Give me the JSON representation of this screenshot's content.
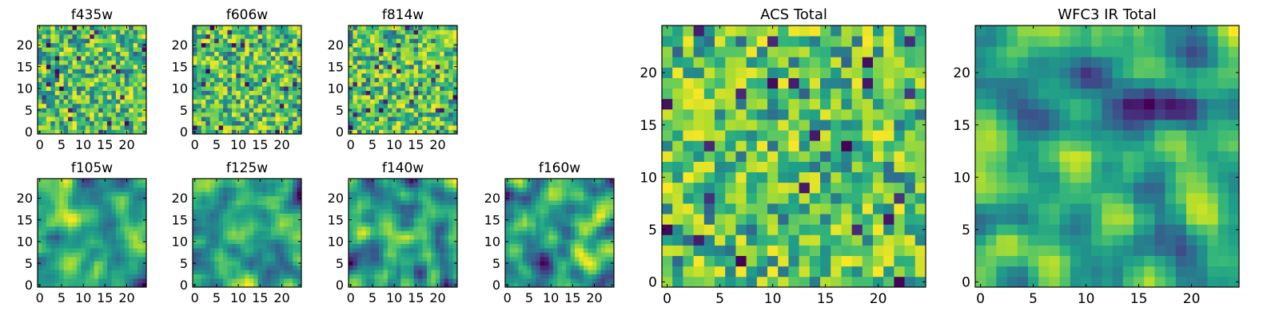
{
  "figure": {
    "panels": [
      {
        "title": "f435w"
      },
      {
        "title": "f606w"
      },
      {
        "title": "f814w"
      },
      {
        "title": "f105w"
      },
      {
        "title": "f125w"
      },
      {
        "title": "f140w"
      },
      {
        "title": "f160w"
      },
      {
        "title": "ACS Total"
      },
      {
        "title": "WFC3 IR Total"
      }
    ]
  },
  "chart_data": [
    {
      "type": "heatmap",
      "title": "f435w",
      "grid_size": [
        25,
        25
      ],
      "xlim": [
        -0.5,
        24.5
      ],
      "ylim": [
        -0.5,
        24.5
      ],
      "xticks": [
        0,
        5,
        10,
        15,
        20
      ],
      "yticks": [
        0,
        5,
        10,
        15,
        20
      ],
      "colormap": "viridis",
      "pattern": "noise",
      "seed": 11
    },
    {
      "type": "heatmap",
      "title": "f606w",
      "grid_size": [
        25,
        25
      ],
      "xlim": [
        -0.5,
        24.5
      ],
      "ylim": [
        -0.5,
        24.5
      ],
      "xticks": [
        0,
        5,
        10,
        15,
        20
      ],
      "yticks": [
        0,
        5,
        10,
        15,
        20
      ],
      "colormap": "viridis",
      "pattern": "noise",
      "seed": 23
    },
    {
      "type": "heatmap",
      "title": "f814w",
      "grid_size": [
        25,
        25
      ],
      "xlim": [
        -0.5,
        24.5
      ],
      "ylim": [
        -0.5,
        24.5
      ],
      "xticks": [
        0,
        5,
        10,
        15,
        20
      ],
      "yticks": [
        0,
        5,
        10,
        15,
        20
      ],
      "colormap": "viridis",
      "pattern": "noise",
      "seed": 37
    },
    {
      "type": "heatmap",
      "title": "f105w",
      "grid_size": [
        25,
        25
      ],
      "xlim": [
        -0.5,
        24.5
      ],
      "ylim": [
        -0.5,
        24.5
      ],
      "xticks": [
        0,
        5,
        10,
        15,
        20
      ],
      "yticks": [
        0,
        5,
        10,
        15,
        20
      ],
      "colormap": "viridis",
      "pattern": "smooth",
      "seed": 41
    },
    {
      "type": "heatmap",
      "title": "f125w",
      "grid_size": [
        25,
        25
      ],
      "xlim": [
        -0.5,
        24.5
      ],
      "ylim": [
        -0.5,
        24.5
      ],
      "xticks": [
        0,
        5,
        10,
        15,
        20
      ],
      "yticks": [
        0,
        5,
        10,
        15,
        20
      ],
      "colormap": "viridis",
      "pattern": "smooth",
      "seed": 53
    },
    {
      "type": "heatmap",
      "title": "f140w",
      "grid_size": [
        25,
        25
      ],
      "xlim": [
        -0.5,
        24.5
      ],
      "ylim": [
        -0.5,
        24.5
      ],
      "xticks": [
        0,
        5,
        10,
        15,
        20
      ],
      "yticks": [
        0,
        5,
        10,
        15,
        20
      ],
      "colormap": "viridis",
      "pattern": "smooth",
      "seed": 67
    },
    {
      "type": "heatmap",
      "title": "f160w",
      "grid_size": [
        25,
        25
      ],
      "xlim": [
        -0.5,
        24.5
      ],
      "ylim": [
        -0.5,
        24.5
      ],
      "xticks": [
        0,
        5,
        10,
        15,
        20
      ],
      "yticks": [
        0,
        5,
        10,
        15,
        20
      ],
      "colormap": "viridis",
      "pattern": "smooth",
      "seed": 79
    },
    {
      "type": "heatmap",
      "title": "ACS Total",
      "grid_size": [
        25,
        25
      ],
      "xlim": [
        -0.5,
        24.5
      ],
      "ylim": [
        -0.5,
        24.5
      ],
      "xticks": [
        0,
        5,
        10,
        15,
        20
      ],
      "yticks": [
        0,
        5,
        10,
        15,
        20
      ],
      "colormap": "viridis",
      "pattern": "noise",
      "seed": 83
    },
    {
      "type": "heatmap",
      "title": "WFC3 IR Total",
      "grid_size": [
        25,
        25
      ],
      "xlim": [
        -0.5,
        24.5
      ],
      "ylim": [
        -0.5,
        24.5
      ],
      "xticks": [
        0,
        5,
        10,
        15,
        20
      ],
      "yticks": [
        0,
        5,
        10,
        15,
        20
      ],
      "colormap": "viridis",
      "pattern": "smooth",
      "seed": 97
    }
  ]
}
